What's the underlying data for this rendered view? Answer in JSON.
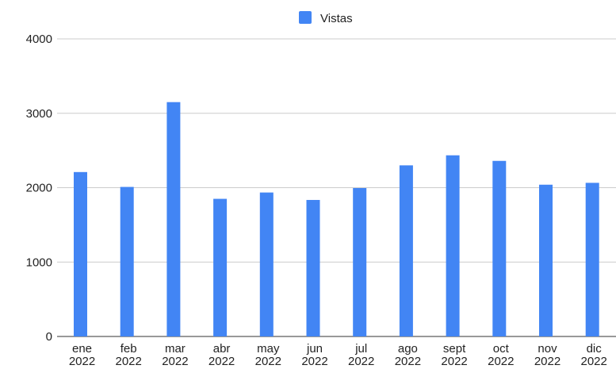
{
  "chart_data": {
    "type": "bar",
    "categories": [
      [
        "ene",
        "2022"
      ],
      [
        "feb",
        "2022"
      ],
      [
        "mar",
        "2022"
      ],
      [
        "abr",
        "2022"
      ],
      [
        "may",
        "2022"
      ],
      [
        "jun",
        "2022"
      ],
      [
        "jul",
        "2022"
      ],
      [
        "ago",
        "2022"
      ],
      [
        "sept",
        "2022"
      ],
      [
        "oct",
        "2022"
      ],
      [
        "nov",
        "2022"
      ],
      [
        "dic",
        "2022"
      ]
    ],
    "series": [
      {
        "name": "Vistas",
        "color": "#4285f4",
        "values": [
          2210,
          2010,
          3150,
          1850,
          1935,
          1835,
          1995,
          2300,
          2435,
          2360,
          2040,
          2065
        ]
      }
    ],
    "ylim": [
      0,
      4000
    ],
    "yticks": [
      0,
      1000,
      2000,
      3000,
      4000
    ],
    "grid": true,
    "legend_position": "top-center"
  }
}
